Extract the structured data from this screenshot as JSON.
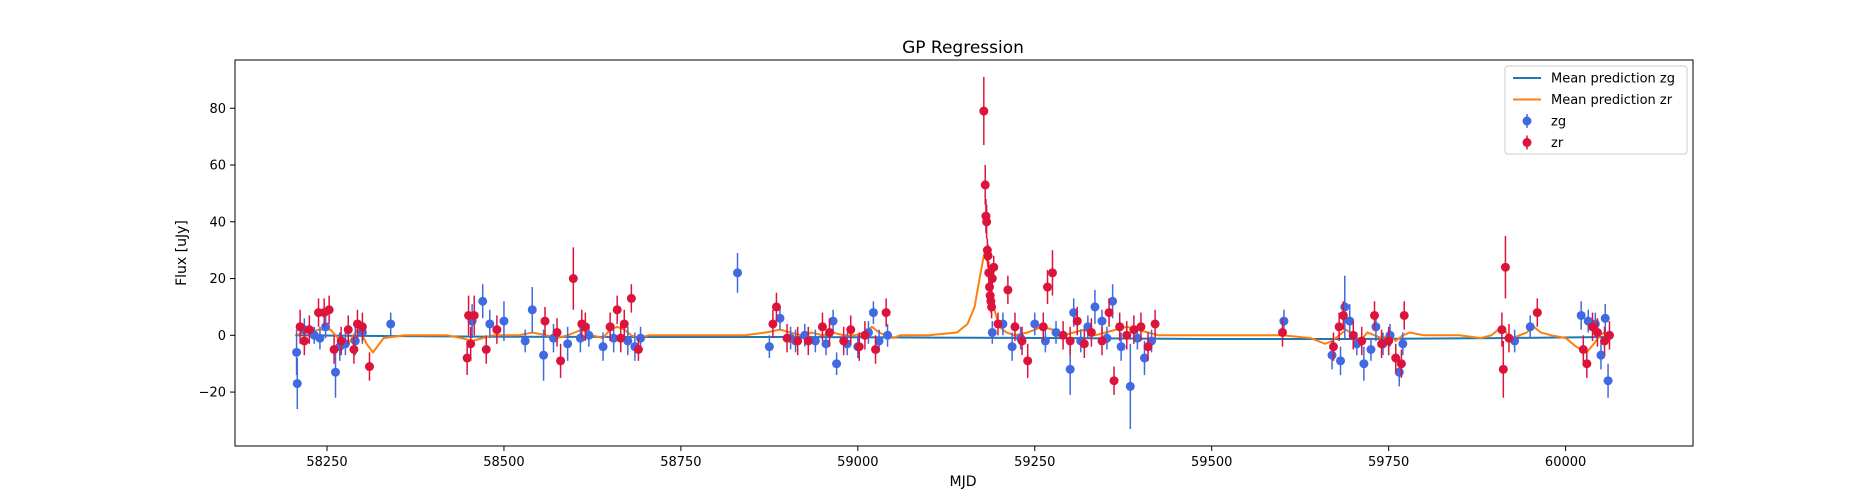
{
  "chart_data": {
    "type": "scatter",
    "title": "GP Regression",
    "xlabel": "MJD",
    "ylabel": "Flux [uJy]",
    "xlim": [
      58120,
      60180
    ],
    "ylim": [
      -39,
      97
    ],
    "xticks": [
      58250,
      58500,
      58750,
      59000,
      59250,
      59500,
      59750,
      60000
    ],
    "yticks": [
      -20,
      0,
      20,
      40,
      60,
      80
    ],
    "grid": false,
    "legend_position": "top-right",
    "colors": {
      "zg": "#4169e1",
      "zr": "#dc143c",
      "mean_zg": "#1f77b4",
      "mean_zr": "#ff7f0e"
    },
    "series": [
      {
        "name": "Mean prediction zg",
        "kind": "line",
        "color": "#1f77b4",
        "x": [
          58205,
          58300,
          58500,
          58700,
          58900,
          59100,
          59300,
          59500,
          59700,
          59900,
          60062
        ],
        "y": [
          0,
          -0.2,
          -0.5,
          -0.6,
          -0.6,
          -0.8,
          -1.0,
          -1.3,
          -1.3,
          -1.0,
          -0.6
        ]
      },
      {
        "name": "Mean prediction zr",
        "kind": "line",
        "color": "#ff7f0e",
        "x": [
          58205,
          58220,
          58240,
          58255,
          58262,
          58270,
          58278,
          58285,
          58293,
          58300,
          58306,
          58315,
          58330,
          58360,
          58420,
          58440,
          58455,
          58470,
          58485,
          58500,
          58520,
          58540,
          58560,
          58575,
          58590,
          58600,
          58610,
          58625,
          58640,
          58650,
          58660,
          58670,
          58680,
          58690,
          58705,
          58730,
          58780,
          58840,
          58870,
          58890,
          58905,
          58920,
          58935,
          58950,
          58965,
          58980,
          58995,
          59010,
          59020,
          59030,
          59040,
          59050,
          59060,
          59080,
          59100,
          59140,
          59155,
          59165,
          59172,
          59178,
          59183,
          59188,
          59193,
          59200,
          59210,
          59222,
          59240,
          59260,
          59275,
          59290,
          59305,
          59320,
          59335,
          59350,
          59365,
          59380,
          59395,
          59410,
          59425,
          59450,
          59500,
          59550,
          59600,
          59640,
          59660,
          59670,
          59680,
          59690,
          59700,
          59710,
          59720,
          59730,
          59740,
          59750,
          59760,
          59770,
          59780,
          59800,
          59850,
          59880,
          59895,
          59905,
          59912,
          59918,
          59925,
          59935,
          59945,
          59955,
          59965,
          59980,
          60000,
          60015,
          60030,
          60040,
          60048,
          60055,
          60062
        ],
        "y": [
          0,
          1,
          2,
          2,
          0,
          -2,
          -4,
          -1,
          2,
          0,
          -3,
          -6,
          -1,
          0,
          0,
          -1,
          -2,
          -1,
          0,
          0,
          0,
          1,
          0,
          -1,
          0,
          1,
          2,
          0,
          -1,
          2,
          3,
          2,
          0,
          -1,
          0,
          0,
          0,
          0,
          1,
          2,
          1,
          0,
          1,
          0,
          1,
          0,
          0,
          1,
          3,
          1,
          0,
          -1,
          0,
          0,
          0,
          1,
          4,
          10,
          20,
          28,
          26,
          18,
          9,
          3,
          1,
          0,
          1,
          3,
          2,
          0,
          1,
          2,
          0,
          1,
          2,
          3,
          2,
          1,
          0,
          0,
          0,
          0,
          0,
          -1,
          -3,
          -2,
          0,
          2,
          0,
          -2,
          1,
          0,
          -1,
          0,
          -2,
          0,
          1,
          0,
          0,
          -1,
          0,
          2,
          3,
          0,
          -1,
          0,
          1,
          3,
          1,
          0,
          -1,
          -4,
          -6,
          -3,
          0,
          1,
          0
        ]
      },
      {
        "name": "zg",
        "kind": "errorbar",
        "color": "#4169e1",
        "points": [
          [
            58207,
            -6,
            8
          ],
          [
            58208,
            -17,
            9
          ],
          [
            58218,
            2,
            4
          ],
          [
            58232,
            0,
            3
          ],
          [
            58240,
            -1,
            4
          ],
          [
            58248,
            3,
            4
          ],
          [
            58262,
            -13,
            9
          ],
          [
            58268,
            -4,
            5
          ],
          [
            58276,
            -3,
            4
          ],
          [
            58290,
            -2,
            5
          ],
          [
            58300,
            1,
            4
          ],
          [
            58340,
            4,
            4
          ],
          [
            58455,
            5,
            6
          ],
          [
            58470,
            12,
            6
          ],
          [
            58480,
            4,
            5
          ],
          [
            58500,
            5,
            7
          ],
          [
            58530,
            -2,
            4
          ],
          [
            58540,
            9,
            8
          ],
          [
            58556,
            -7,
            9
          ],
          [
            58570,
            -1,
            5
          ],
          [
            58590,
            -3,
            6
          ],
          [
            58608,
            -1,
            5
          ],
          [
            58620,
            0,
            4
          ],
          [
            58640,
            -4,
            5
          ],
          [
            58655,
            -1,
            5
          ],
          [
            58675,
            -2,
            5
          ],
          [
            58685,
            -4,
            5
          ],
          [
            58693,
            -1,
            4
          ],
          [
            58830,
            22,
            7
          ],
          [
            58875,
            -4,
            4
          ],
          [
            58890,
            6,
            4
          ],
          [
            58905,
            -1,
            4
          ],
          [
            58912,
            -2,
            4
          ],
          [
            58925,
            0,
            4
          ],
          [
            58940,
            -2,
            4
          ],
          [
            58955,
            -3,
            4
          ],
          [
            58965,
            5,
            4
          ],
          [
            58970,
            -10,
            4
          ],
          [
            58985,
            -3,
            4
          ],
          [
            59000,
            -4,
            4
          ],
          [
            59015,
            1,
            4
          ],
          [
            59022,
            8,
            4
          ],
          [
            59030,
            -2,
            4
          ],
          [
            59042,
            0,
            4
          ],
          [
            59190,
            1,
            4
          ],
          [
            59205,
            4,
            4
          ],
          [
            59218,
            -4,
            5
          ],
          [
            59230,
            -1,
            4
          ],
          [
            59250,
            4,
            4
          ],
          [
            59265,
            -2,
            4
          ],
          [
            59280,
            1,
            4
          ],
          [
            59300,
            -12,
            9
          ],
          [
            59305,
            8,
            5
          ],
          [
            59315,
            -2,
            4
          ],
          [
            59325,
            3,
            4
          ],
          [
            59335,
            10,
            6
          ],
          [
            59345,
            5,
            4
          ],
          [
            59352,
            -1,
            4
          ],
          [
            59360,
            12,
            6
          ],
          [
            59372,
            -4,
            5
          ],
          [
            59385,
            -18,
            15
          ],
          [
            59395,
            -1,
            4
          ],
          [
            59405,
            -8,
            6
          ],
          [
            59415,
            -2,
            4
          ],
          [
            59602,
            5,
            4
          ],
          [
            59670,
            -7,
            5
          ],
          [
            59682,
            -9,
            5
          ],
          [
            59688,
            10,
            11
          ],
          [
            59695,
            5,
            6
          ],
          [
            59705,
            -3,
            4
          ],
          [
            59715,
            -10,
            6
          ],
          [
            59725,
            -5,
            4
          ],
          [
            59732,
            3,
            5
          ],
          [
            59742,
            -3,
            4
          ],
          [
            59752,
            0,
            4
          ],
          [
            59765,
            -13,
            5
          ],
          [
            59770,
            -3,
            4
          ],
          [
            59928,
            -2,
            4
          ],
          [
            59950,
            3,
            4
          ],
          [
            60022,
            7,
            5
          ],
          [
            60032,
            5,
            4
          ],
          [
            60042,
            4,
            4
          ],
          [
            60050,
            -7,
            5
          ],
          [
            60056,
            6,
            5
          ],
          [
            60060,
            -16,
            6
          ]
        ]
      },
      {
        "name": "zr",
        "kind": "errorbar",
        "color": "#dc143c",
        "points": [
          [
            58212,
            3,
            6
          ],
          [
            58218,
            -2,
            5
          ],
          [
            58225,
            2,
            5
          ],
          [
            58238,
            8,
            5
          ],
          [
            58246,
            8,
            5
          ],
          [
            58253,
            9,
            5
          ],
          [
            58260,
            -5,
            5
          ],
          [
            58270,
            -2,
            5
          ],
          [
            58280,
            2,
            5
          ],
          [
            58288,
            -5,
            5
          ],
          [
            58293,
            4,
            5
          ],
          [
            58300,
            3,
            5
          ],
          [
            58310,
            -11,
            5
          ],
          [
            58448,
            -8,
            6
          ],
          [
            58450,
            7,
            7
          ],
          [
            58453,
            -3,
            6
          ],
          [
            58458,
            7,
            7
          ],
          [
            58475,
            -5,
            5
          ],
          [
            58490,
            2,
            5
          ],
          [
            58558,
            5,
            5
          ],
          [
            58575,
            1,
            5
          ],
          [
            58580,
            -9,
            6
          ],
          [
            58598,
            20,
            11
          ],
          [
            58610,
            4,
            5
          ],
          [
            58615,
            3,
            5
          ],
          [
            58650,
            3,
            5
          ],
          [
            58660,
            9,
            5
          ],
          [
            58665,
            -1,
            5
          ],
          [
            58670,
            4,
            5
          ],
          [
            58680,
            13,
            5
          ],
          [
            58690,
            -5,
            4
          ],
          [
            58880,
            4,
            5
          ],
          [
            58885,
            10,
            5
          ],
          [
            58900,
            -1,
            5
          ],
          [
            58915,
            -2,
            5
          ],
          [
            58930,
            -2,
            5
          ],
          [
            58950,
            3,
            5
          ],
          [
            58960,
            1,
            5
          ],
          [
            58980,
            -2,
            5
          ],
          [
            58990,
            2,
            5
          ],
          [
            59002,
            -4,
            5
          ],
          [
            59010,
            0,
            5
          ],
          [
            59025,
            -5,
            5
          ],
          [
            59040,
            8,
            5
          ],
          [
            59178,
            79,
            12
          ],
          [
            59180,
            53,
            7
          ],
          [
            59181,
            42,
            6
          ],
          [
            59182,
            40,
            6
          ],
          [
            59183,
            30,
            4
          ],
          [
            59184,
            28,
            4
          ],
          [
            59185,
            22,
            4
          ],
          [
            59186,
            17,
            4
          ],
          [
            59187,
            14,
            4
          ],
          [
            59188,
            12,
            4
          ],
          [
            59189,
            10,
            4
          ],
          [
            59190,
            20,
            4
          ],
          [
            59192,
            24,
            4
          ],
          [
            59198,
            4,
            4
          ],
          [
            59212,
            16,
            5
          ],
          [
            59222,
            3,
            5
          ],
          [
            59232,
            -2,
            5
          ],
          [
            59240,
            -9,
            6
          ],
          [
            59262,
            3,
            5
          ],
          [
            59268,
            17,
            6
          ],
          [
            59275,
            22,
            8
          ],
          [
            59290,
            0,
            5
          ],
          [
            59300,
            -2,
            5
          ],
          [
            59310,
            5,
            5
          ],
          [
            59320,
            -3,
            5
          ],
          [
            59330,
            1,
            5
          ],
          [
            59345,
            -2,
            5
          ],
          [
            59355,
            8,
            5
          ],
          [
            59362,
            -16,
            5
          ],
          [
            59370,
            3,
            5
          ],
          [
            59380,
            0,
            5
          ],
          [
            59390,
            2,
            5
          ],
          [
            59400,
            3,
            5
          ],
          [
            59410,
            -4,
            5
          ],
          [
            59420,
            4,
            5
          ],
          [
            59600,
            1,
            5
          ],
          [
            59672,
            -4,
            5
          ],
          [
            59680,
            3,
            5
          ],
          [
            59686,
            7,
            5
          ],
          [
            59700,
            0,
            5
          ],
          [
            59712,
            -2,
            5
          ],
          [
            59730,
            7,
            5
          ],
          [
            59740,
            -3,
            5
          ],
          [
            59750,
            -2,
            5
          ],
          [
            59760,
            -8,
            5
          ],
          [
            59768,
            -10,
            5
          ],
          [
            59772,
            7,
            5
          ],
          [
            59910,
            2,
            6
          ],
          [
            59912,
            -12,
            10
          ],
          [
            59915,
            24,
            11
          ],
          [
            59920,
            -1,
            5
          ],
          [
            59960,
            8,
            5
          ],
          [
            60025,
            -5,
            5
          ],
          [
            60030,
            -10,
            5
          ],
          [
            60038,
            3,
            5
          ],
          [
            60045,
            1,
            5
          ],
          [
            60055,
            -2,
            5
          ],
          [
            60062,
            0,
            5
          ]
        ]
      }
    ]
  }
}
